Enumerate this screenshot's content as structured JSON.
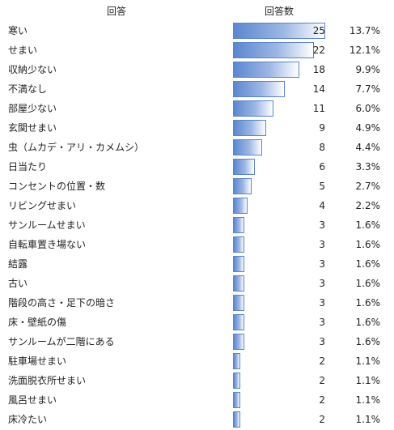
{
  "headers": {
    "answer": "回答",
    "count": "回答数"
  },
  "chart_data": {
    "type": "bar",
    "orientation": "horizontal",
    "xlim": [
      0,
      25
    ],
    "bar_colors": {
      "start": "#5b87d0",
      "end": "#ffffff",
      "border": "#5b83c6"
    },
    "categories": [
      "寒い",
      "せまい",
      "収納少ない",
      "不満なし",
      "部屋少ない",
      "玄関せまい",
      "虫（ムカデ・アリ・カメムシ）",
      "日当たり",
      "コンセントの位置・数",
      "リビングせまい",
      "サンルームせまい",
      "自転車置き場ない",
      "結露",
      "古い",
      "階段の高さ・足下の暗さ",
      "床・壁紙の傷",
      "サンルームが二階にある",
      "駐車場せまい",
      "洗面脱衣所せまい",
      "風呂せまい",
      "床冷たい"
    ],
    "values": [
      25,
      22,
      18,
      14,
      11,
      9,
      8,
      6,
      5,
      4,
      3,
      3,
      3,
      3,
      3,
      3,
      3,
      2,
      2,
      2,
      2
    ],
    "percentages": [
      "13.7%",
      "12.1%",
      "9.9%",
      "7.7%",
      "6.0%",
      "4.9%",
      "4.4%",
      "3.3%",
      "2.7%",
      "2.2%",
      "1.6%",
      "1.6%",
      "1.6%",
      "1.6%",
      "1.6%",
      "1.6%",
      "1.6%",
      "1.1%",
      "1.1%",
      "1.1%",
      "1.1%"
    ]
  }
}
